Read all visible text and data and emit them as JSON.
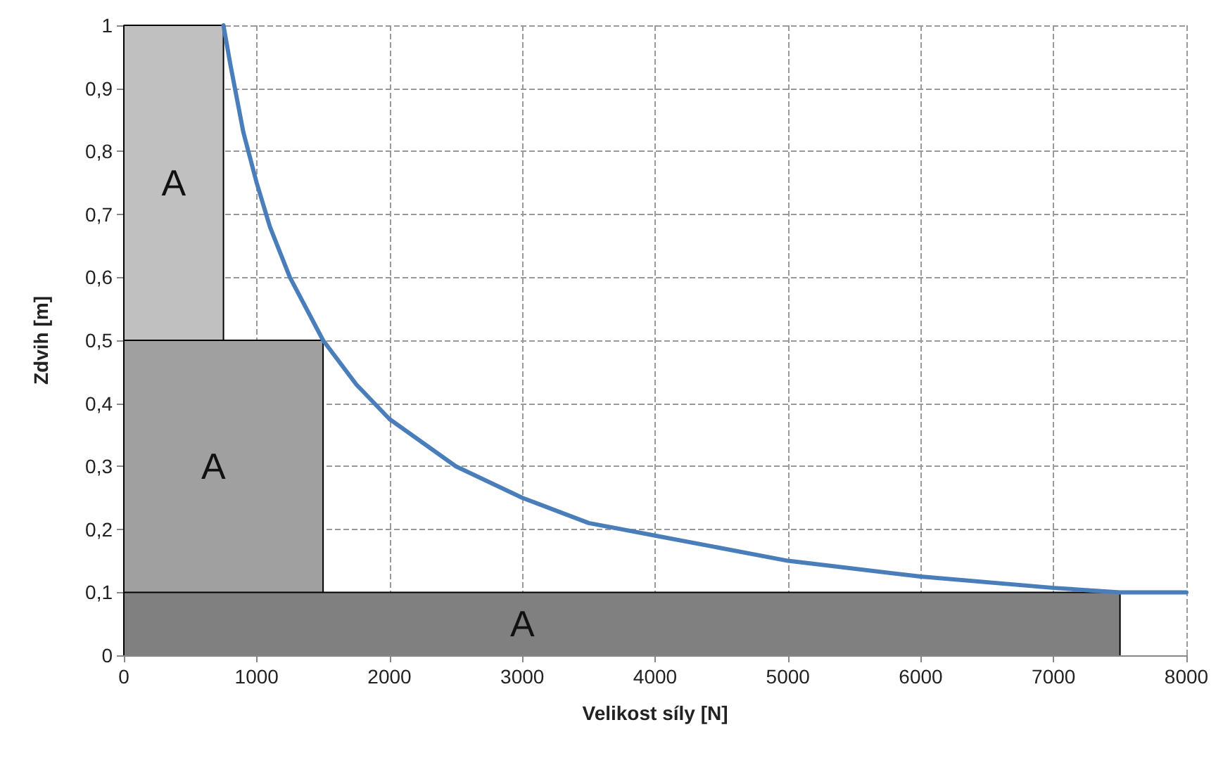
{
  "chart_data": {
    "type": "line",
    "xlabel": "Velikost síly [N]",
    "ylabel": "Zdvih [m]",
    "series": [
      {
        "type": "area",
        "color": "#c0c0c0",
        "x": [
          0,
          0,
          750,
          750
        ],
        "values": [
          0,
          1,
          1,
          0
        ]
      },
      {
        "type": "area",
        "color": "#a0a0a0",
        "x": [
          0,
          0,
          1500,
          1500
        ],
        "values": [
          0,
          0.5,
          0.5,
          0
        ]
      },
      {
        "type": "area",
        "color": "#808080",
        "x": [
          0,
          0,
          7500,
          7500
        ],
        "values": [
          0,
          0.1,
          0.1,
          0
        ]
      },
      {
        "type": "line",
        "color": "#4a7ebb",
        "x": [
          750,
          800,
          900,
          1000,
          1100,
          1250,
          1500,
          1750,
          2000,
          2500,
          3000,
          3500,
          4000,
          5000,
          6000,
          7000,
          7500,
          8000
        ],
        "values": [
          1,
          0.94,
          0.83,
          0.75,
          0.68,
          0.6,
          0.5,
          0.43,
          0.375,
          0.3,
          0.25,
          0.21,
          0.19,
          0.15,
          0.125,
          0.107,
          0.1,
          0.1
        ]
      }
    ],
    "annotations": [
      "A",
      "A",
      "A"
    ],
    "xlim": [
      0,
      8000
    ],
    "xticks": [
      0,
      1000,
      2000,
      3000,
      4000,
      5000,
      6000,
      7000,
      8000
    ],
    "ylim": [
      0,
      1
    ],
    "yticks": [
      0,
      {
        "value": 0.1,
        "label": "0,1"
      },
      {
        "value": 0.2,
        "label": "0,2"
      },
      {
        "value": 0.3,
        "label": "0,3"
      },
      {
        "value": 0.4,
        "label": "0,4"
      },
      {
        "value": 0.5,
        "label": "0,5"
      },
      {
        "value": 0.6,
        "label": "0,6"
      },
      {
        "value": 0.7,
        "label": "0,7"
      },
      {
        "value": 0.8,
        "label": "0,8"
      },
      {
        "value": 0.9,
        "label": "0,9"
      },
      1
    ],
    "grid": true,
    "marker": "none"
  }
}
